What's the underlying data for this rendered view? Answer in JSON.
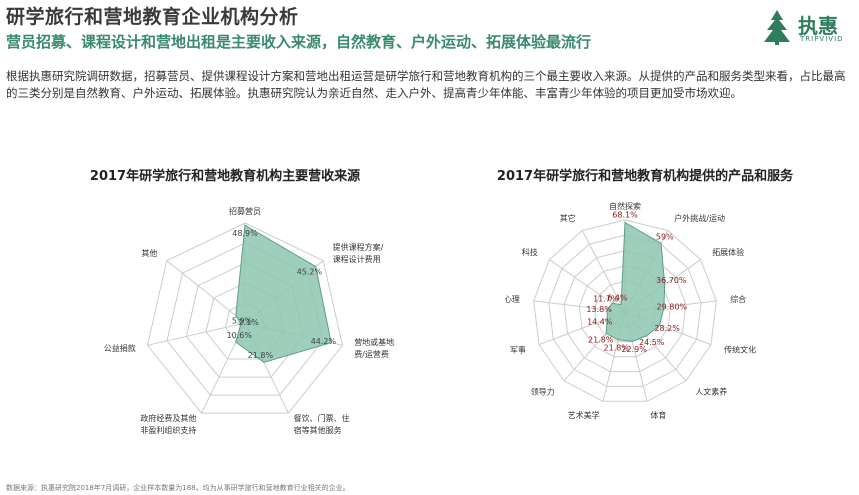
{
  "header": {
    "title": "研学旅行和营地教育企业机构分析",
    "subtitle": "营员招募、课程设计和营地出租是主要收入来源，自然教育、户外运动、拓展体验最流行",
    "intro": "根据执惠研究院调研数据，招募营员、提供课程设计方案和营地出租运营是研学旅行和营地教育机构的三个最主要收入来源。从提供的产品和服务类型来看，占比最高的三类分别是自然教育、户外运动、拓展体验。执惠研究院认为亲近自然、走入户外、提高青少年体能、丰富青少年体验的项目更加受市场欢迎。"
  },
  "logo": {
    "main": "执惠",
    "sub": "TRIPVIVID",
    "icon": "tree-icon"
  },
  "colors": {
    "accent": "#3a8a6f",
    "fill": "#8cc7b0",
    "grid": "#cccccc"
  },
  "footnote": "数据来源：执惠研究院2018年7月调研，企业样本数量为188。均为从事研学旅行和营地教育行业相关的企业。",
  "chart_data": [
    {
      "type": "radar",
      "title": "2017年研学旅行和营地教育机构主要营收来源",
      "categories": [
        "招募营员",
        "提供课程方案/课程设计费用",
        "营地或基地出租费/运营费",
        "餐饮、门票、住宿等其他服务",
        "政府经费及其他非盈利组织支持",
        "公益捐款",
        "其他"
      ],
      "values": [
        48.9,
        45.2,
        44.2,
        21.8,
        10.6,
        2.1,
        5.9
      ],
      "value_labels": [
        "48.9%",
        "45.2%",
        "44.2%",
        "21.8%",
        "10.6%",
        "2.1%",
        "5.9%"
      ],
      "category_lines": [
        [
          "招募营员"
        ],
        [
          "提供课程方案/",
          "课程设计费用"
        ],
        [
          "营地或基地出租",
          "费/运营费"
        ],
        [
          "餐饮、门票、住",
          "宿等其他服务"
        ],
        [
          "政府经费及其他",
          "非盈利组织支持"
        ],
        [
          "公益捐款"
        ],
        [
          "其他"
        ]
      ],
      "rmax": 50
    },
    {
      "type": "radar",
      "title": "2017年研学旅行和营地教育机构提供的产品和服务",
      "categories": [
        "自然探索",
        "户外挑战/运动",
        "拓展体验",
        "综合",
        "传统文化",
        "人文素养",
        "体育",
        "艺术美学",
        "领导力",
        "军事",
        "心理",
        "科技",
        "其它"
      ],
      "values": [
        68.1,
        59,
        36.7,
        29.8,
        28.2,
        24.5,
        22.9,
        21.8,
        21.8,
        14.4,
        13.8,
        11.7,
        6.4
      ],
      "value_labels": [
        "68.1%",
        "59%",
        "36.70%",
        "29.80%",
        "28.2%",
        "24.5%",
        "22.9%",
        "21.8%",
        "21.8%",
        "14.4%",
        "13.8%",
        "11.7%",
        "6.4%"
      ],
      "rmax": 70
    }
  ]
}
